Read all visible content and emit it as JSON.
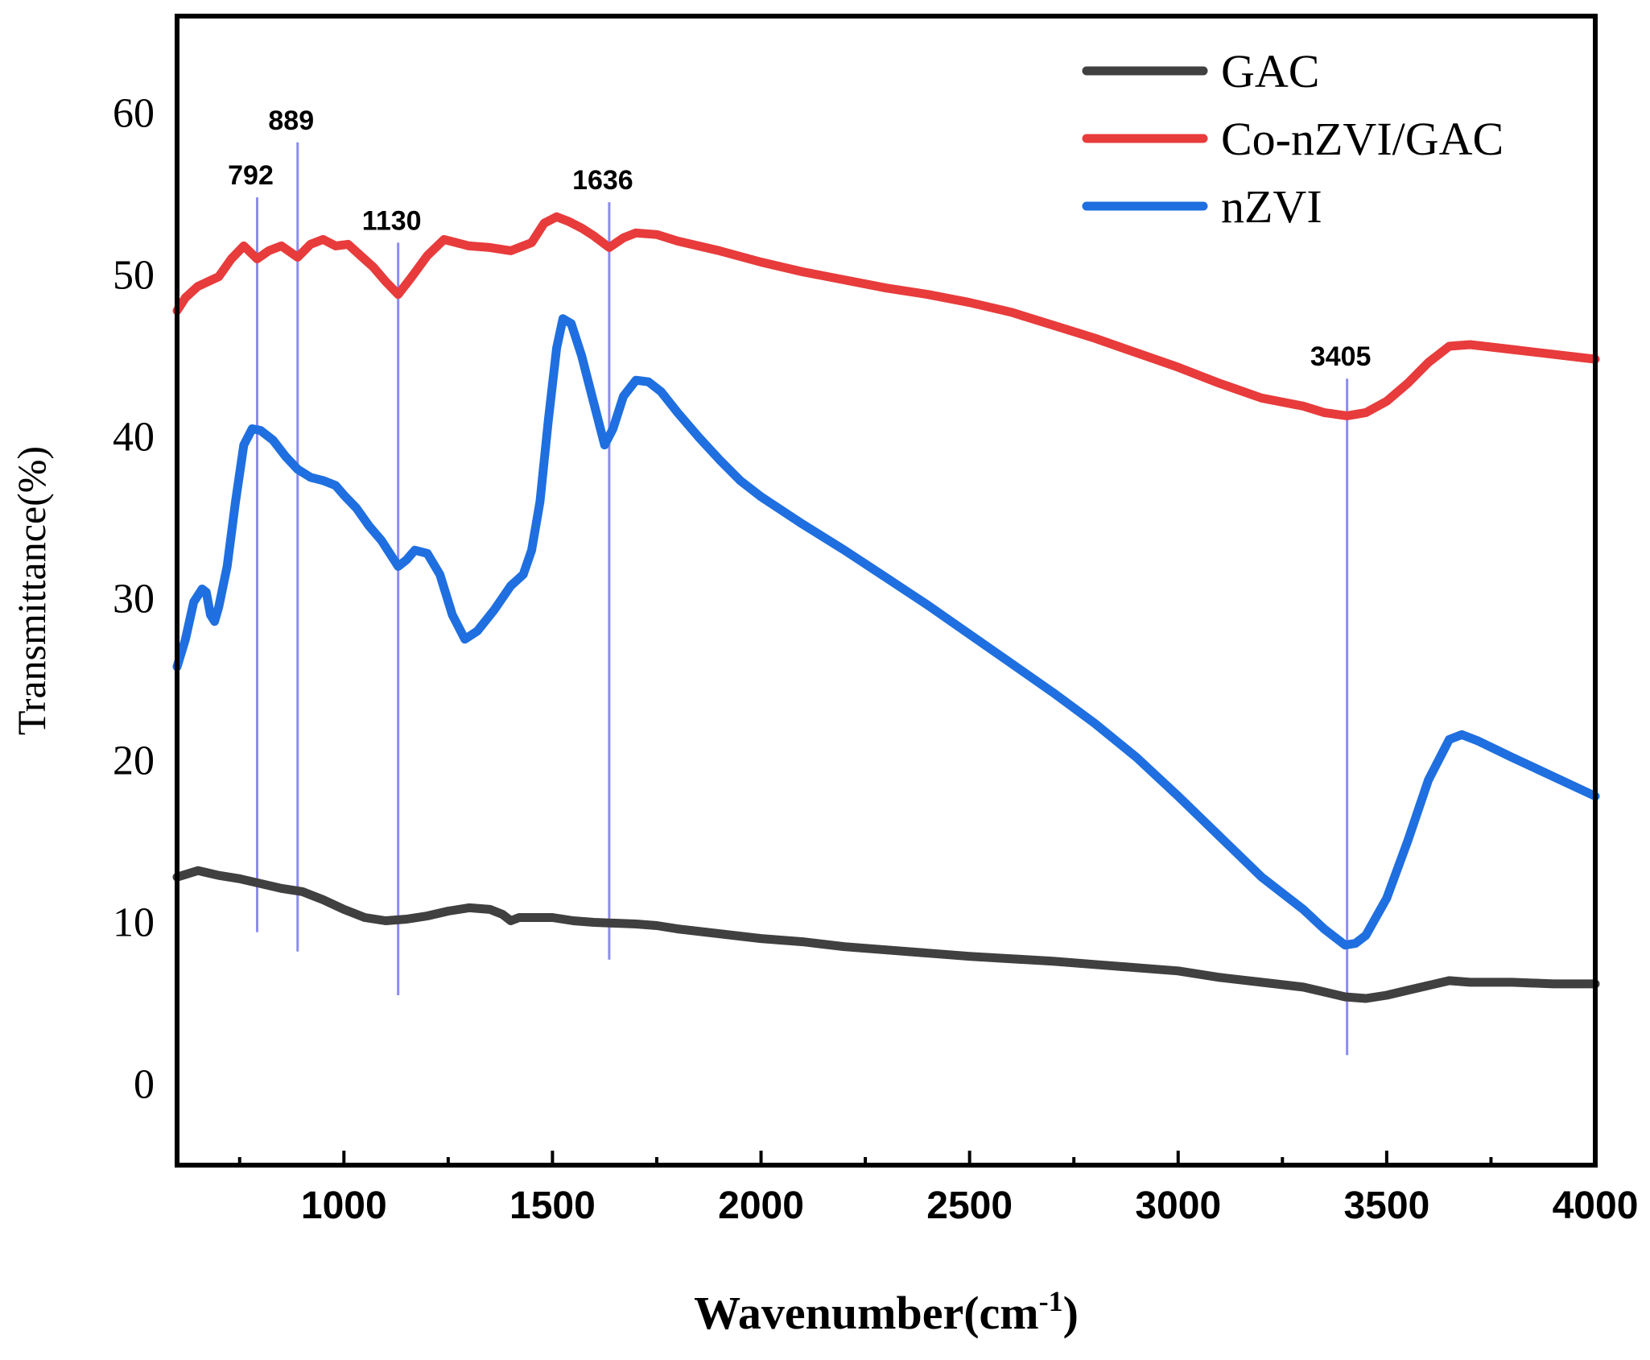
{
  "chart_data": {
    "type": "line",
    "title": "",
    "xlabel": "Wavenumber(cm",
    "xlabel_sup": "-1",
    "xlabel_close": ")",
    "ylabel": "Transmittance(%)",
    "xlim": [
      600,
      4000
    ],
    "ylim": [
      -5,
      66
    ],
    "x_ticks": [
      1000,
      1500,
      2000,
      2500,
      3000,
      3500,
      4000
    ],
    "y_ticks": [
      0,
      10,
      20,
      30,
      40,
      50,
      60
    ],
    "legend_position": "top-right",
    "series": [
      {
        "name": "GAC",
        "color": "#404040",
        "points": [
          [
            600,
            12.8
          ],
          [
            650,
            13.2
          ],
          [
            700,
            12.9
          ],
          [
            750,
            12.7
          ],
          [
            800,
            12.4
          ],
          [
            850,
            12.1
          ],
          [
            900,
            11.9
          ],
          [
            950,
            11.4
          ],
          [
            1000,
            10.8
          ],
          [
            1050,
            10.3
          ],
          [
            1100,
            10.1
          ],
          [
            1150,
            10.2
          ],
          [
            1200,
            10.4
          ],
          [
            1250,
            10.7
          ],
          [
            1300,
            10.9
          ],
          [
            1350,
            10.8
          ],
          [
            1380,
            10.5
          ],
          [
            1400,
            10.1
          ],
          [
            1420,
            10.3
          ],
          [
            1500,
            10.3
          ],
          [
            1550,
            10.1
          ],
          [
            1600,
            10.0
          ],
          [
            1650,
            9.95
          ],
          [
            1700,
            9.9
          ],
          [
            1750,
            9.8
          ],
          [
            1800,
            9.6
          ],
          [
            1900,
            9.3
          ],
          [
            2000,
            9.0
          ],
          [
            2100,
            8.8
          ],
          [
            2200,
            8.5
          ],
          [
            2300,
            8.3
          ],
          [
            2400,
            8.1
          ],
          [
            2500,
            7.9
          ],
          [
            2600,
            7.75
          ],
          [
            2700,
            7.6
          ],
          [
            2800,
            7.4
          ],
          [
            2900,
            7.2
          ],
          [
            3000,
            7.0
          ],
          [
            3100,
            6.6
          ],
          [
            3200,
            6.3
          ],
          [
            3300,
            6.0
          ],
          [
            3350,
            5.7
          ],
          [
            3400,
            5.4
          ],
          [
            3450,
            5.3
          ],
          [
            3500,
            5.5
          ],
          [
            3550,
            5.8
          ],
          [
            3600,
            6.1
          ],
          [
            3650,
            6.4
          ],
          [
            3700,
            6.3
          ],
          [
            3800,
            6.3
          ],
          [
            3900,
            6.2
          ],
          [
            4000,
            6.2
          ]
        ]
      },
      {
        "name": "Co-nZVI/GAC",
        "color": "#e83b3b",
        "points": [
          [
            600,
            47.8
          ],
          [
            620,
            48.6
          ],
          [
            650,
            49.3
          ],
          [
            700,
            49.9
          ],
          [
            730,
            51.0
          ],
          [
            760,
            51.8
          ],
          [
            792,
            51.0
          ],
          [
            820,
            51.5
          ],
          [
            850,
            51.8
          ],
          [
            889,
            51.1
          ],
          [
            920,
            51.9
          ],
          [
            950,
            52.2
          ],
          [
            980,
            51.8
          ],
          [
            1010,
            51.9
          ],
          [
            1040,
            51.2
          ],
          [
            1070,
            50.5
          ],
          [
            1100,
            49.6
          ],
          [
            1130,
            48.8
          ],
          [
            1160,
            49.8
          ],
          [
            1200,
            51.2
          ],
          [
            1240,
            52.2
          ],
          [
            1270,
            52.0
          ],
          [
            1300,
            51.8
          ],
          [
            1350,
            51.7
          ],
          [
            1400,
            51.5
          ],
          [
            1450,
            52.0
          ],
          [
            1480,
            53.2
          ],
          [
            1510,
            53.6
          ],
          [
            1540,
            53.3
          ],
          [
            1570,
            52.9
          ],
          [
            1600,
            52.4
          ],
          [
            1636,
            51.7
          ],
          [
            1670,
            52.3
          ],
          [
            1700,
            52.6
          ],
          [
            1750,
            52.5
          ],
          [
            1800,
            52.1
          ],
          [
            1900,
            51.5
          ],
          [
            2000,
            50.8
          ],
          [
            2100,
            50.2
          ],
          [
            2200,
            49.7
          ],
          [
            2300,
            49.2
          ],
          [
            2400,
            48.8
          ],
          [
            2500,
            48.3
          ],
          [
            2600,
            47.7
          ],
          [
            2700,
            46.9
          ],
          [
            2800,
            46.1
          ],
          [
            2900,
            45.2
          ],
          [
            3000,
            44.3
          ],
          [
            3100,
            43.3
          ],
          [
            3200,
            42.4
          ],
          [
            3300,
            41.9
          ],
          [
            3350,
            41.5
          ],
          [
            3405,
            41.3
          ],
          [
            3450,
            41.5
          ],
          [
            3500,
            42.2
          ],
          [
            3550,
            43.3
          ],
          [
            3600,
            44.6
          ],
          [
            3650,
            45.6
          ],
          [
            3700,
            45.7
          ],
          [
            3800,
            45.4
          ],
          [
            3900,
            45.1
          ],
          [
            4000,
            44.8
          ]
        ]
      },
      {
        "name": "nZVI",
        "color": "#1f6fe0",
        "points": [
          [
            600,
            25.8
          ],
          [
            620,
            27.5
          ],
          [
            640,
            29.8
          ],
          [
            660,
            30.6
          ],
          [
            670,
            30.4
          ],
          [
            680,
            29.0
          ],
          [
            690,
            28.6
          ],
          [
            700,
            29.5
          ],
          [
            720,
            32.0
          ],
          [
            740,
            36.0
          ],
          [
            760,
            39.5
          ],
          [
            780,
            40.5
          ],
          [
            800,
            40.4
          ],
          [
            830,
            39.8
          ],
          [
            860,
            38.8
          ],
          [
            889,
            38.0
          ],
          [
            920,
            37.5
          ],
          [
            950,
            37.3
          ],
          [
            980,
            37.0
          ],
          [
            1000,
            36.4
          ],
          [
            1030,
            35.6
          ],
          [
            1060,
            34.5
          ],
          [
            1090,
            33.6
          ],
          [
            1110,
            32.8
          ],
          [
            1130,
            32.0
          ],
          [
            1150,
            32.4
          ],
          [
            1170,
            33.0
          ],
          [
            1200,
            32.8
          ],
          [
            1230,
            31.5
          ],
          [
            1260,
            29.0
          ],
          [
            1290,
            27.5
          ],
          [
            1320,
            28.0
          ],
          [
            1360,
            29.3
          ],
          [
            1400,
            30.8
          ],
          [
            1430,
            31.5
          ],
          [
            1450,
            33.0
          ],
          [
            1470,
            36.0
          ],
          [
            1490,
            41.0
          ],
          [
            1510,
            45.5
          ],
          [
            1525,
            47.3
          ],
          [
            1545,
            47.0
          ],
          [
            1570,
            45.0
          ],
          [
            1600,
            42.0
          ],
          [
            1625,
            39.5
          ],
          [
            1645,
            40.5
          ],
          [
            1670,
            42.5
          ],
          [
            1700,
            43.5
          ],
          [
            1730,
            43.4
          ],
          [
            1760,
            42.8
          ],
          [
            1800,
            41.5
          ],
          [
            1850,
            40.0
          ],
          [
            1900,
            38.6
          ],
          [
            1950,
            37.3
          ],
          [
            2000,
            36.3
          ],
          [
            2100,
            34.6
          ],
          [
            2200,
            33.0
          ],
          [
            2300,
            31.3
          ],
          [
            2400,
            29.6
          ],
          [
            2500,
            27.8
          ],
          [
            2600,
            26.0
          ],
          [
            2700,
            24.2
          ],
          [
            2800,
            22.3
          ],
          [
            2900,
            20.2
          ],
          [
            3000,
            17.8
          ],
          [
            3100,
            15.3
          ],
          [
            3200,
            12.8
          ],
          [
            3300,
            10.8
          ],
          [
            3350,
            9.6
          ],
          [
            3400,
            8.6
          ],
          [
            3425,
            8.7
          ],
          [
            3450,
            9.2
          ],
          [
            3500,
            11.5
          ],
          [
            3550,
            15.0
          ],
          [
            3600,
            18.8
          ],
          [
            3650,
            21.3
          ],
          [
            3680,
            21.6
          ],
          [
            3720,
            21.2
          ],
          [
            3800,
            20.2
          ],
          [
            3900,
            19.0
          ],
          [
            4000,
            17.8
          ]
        ]
      }
    ],
    "peak_markers": [
      {
        "x": 792,
        "label": "792",
        "line_color": "#8c8cf2",
        "y_top": 54.8,
        "y_bottom": 9.4
      },
      {
        "x": 889,
        "label": "889",
        "line_color": "#8c8cf2",
        "y_top": 58.2,
        "y_bottom": 8.2
      },
      {
        "x": 1130,
        "label": "1130",
        "line_color": "#8c8cf2",
        "y_top": 52.0,
        "y_bottom": 5.5
      },
      {
        "x": 1636,
        "label": "1636",
        "line_color": "#8c8cf2",
        "y_top": 54.5,
        "y_bottom": 7.7
      },
      {
        "x": 3405,
        "label": "3405",
        "line_color": "#8c8cf2",
        "y_top": 43.6,
        "y_bottom": 1.8
      }
    ]
  }
}
